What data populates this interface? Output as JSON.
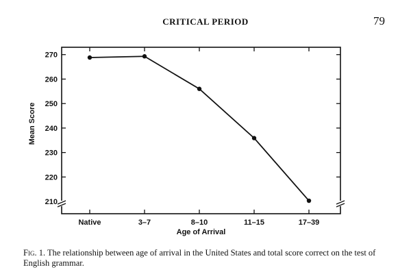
{
  "page": {
    "running_head": "CRITICAL PERIOD",
    "page_number": "79"
  },
  "caption": {
    "label": "Fig. 1.",
    "text": "The relationship between age of arrival in the United States and total score correct on the test of English grammar."
  },
  "chart_data": {
    "type": "line",
    "title": "",
    "xlabel": "Age of Arrival",
    "ylabel": "Mean Score",
    "categories": [
      "Native",
      "3–7",
      "8–10",
      "11–15",
      "17–39"
    ],
    "series": [
      {
        "values": [
          268.8,
          269.3,
          256.0,
          235.9,
          210.3
        ]
      }
    ],
    "ylim": [
      205,
      273
    ],
    "yticks": [
      210,
      220,
      230,
      240,
      250,
      260,
      270
    ],
    "y_axis_break": true,
    "grid": false,
    "legend": "none",
    "line_color": "#111111"
  }
}
